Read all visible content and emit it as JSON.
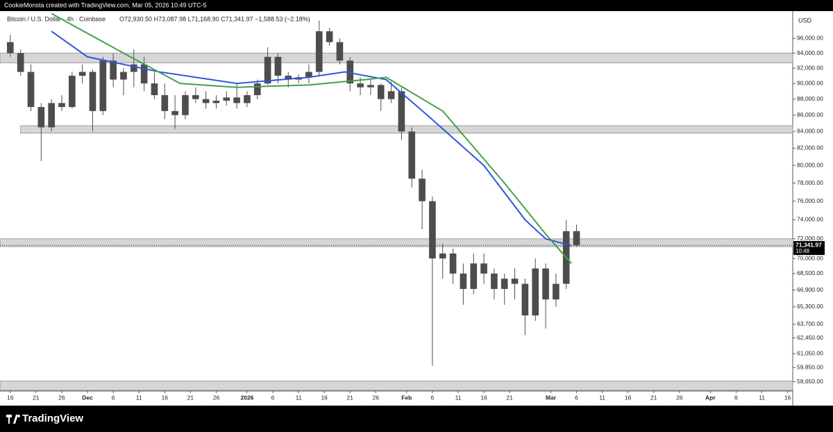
{
  "header": "CookieMonsta created with TradingView.com, Mar 05, 2026 10:49 UTC-5",
  "brand": "TradingView",
  "chart_data": {
    "type": "candlestick",
    "title": "Bitcoin / U.S. Dollar · 4h · Coinbase",
    "subtitle": "O72,930.50 H73,087.98 L71,168.90 C71,341.97 −1,588.53 (−2.18%)",
    "y_unit": "USD",
    "log_scale": true,
    "candle_color": "#4d4d4d",
    "x": [
      "2025-11-15",
      "2025-11-17",
      "2025-11-19",
      "2025-11-21",
      "2025-11-23",
      "2025-11-25",
      "2025-11-27",
      "2025-11-29",
      "2025-12-01",
      "2025-12-03",
      "2025-12-05",
      "2025-12-07",
      "2025-12-09",
      "2025-12-11",
      "2025-12-13",
      "2025-12-15",
      "2025-12-17",
      "2025-12-19",
      "2025-12-21",
      "2025-12-23",
      "2025-12-25",
      "2025-12-27",
      "2025-12-29",
      "2025-12-31",
      "2026-01-02",
      "2026-01-04",
      "2026-01-06",
      "2026-01-08",
      "2026-01-10",
      "2026-01-12",
      "2026-01-14",
      "2026-01-16",
      "2026-01-18",
      "2026-01-20",
      "2026-01-22",
      "2026-01-24",
      "2026-01-26",
      "2026-01-28",
      "2026-01-30",
      "2026-02-01",
      "2026-02-03",
      "2026-02-05",
      "2026-02-07",
      "2026-02-09",
      "2026-02-11",
      "2026-02-13",
      "2026-02-15",
      "2026-02-17",
      "2026-02-19",
      "2026-02-21",
      "2026-02-23",
      "2026-02-25",
      "2026-02-27",
      "2026-03-01",
      "2026-03-03",
      "2026-03-05"
    ],
    "open": [
      95500,
      94000,
      91500,
      87000,
      84500,
      87500,
      87000,
      91000,
      91500,
      86500,
      93000,
      90500,
      91500,
      92500,
      90000,
      88500,
      86500,
      86000,
      88500,
      88000,
      87500,
      87800,
      88200,
      87500,
      88500,
      90000,
      93500,
      91000,
      90500,
      90800,
      91500,
      97000,
      95500,
      93000,
      90000,
      89500,
      89800,
      88000,
      89000,
      84000,
      78500,
      76000,
      70000,
      70500,
      68500,
      67000,
      69500,
      68500,
      67000,
      68000,
      67500,
      64500,
      69000,
      66000,
      67500,
      72800
    ],
    "high": [
      96500,
      94500,
      92500,
      87500,
      88000,
      88500,
      91500,
      92500,
      91800,
      93500,
      94000,
      92000,
      94500,
      93500,
      91500,
      90000,
      88500,
      89000,
      89500,
      89000,
      88500,
      89000,
      90000,
      89000,
      90500,
      94800,
      94000,
      91500,
      91200,
      92500,
      98500,
      97500,
      96000,
      93500,
      90800,
      90500,
      90000,
      90200,
      89500,
      84500,
      79500,
      76500,
      71500,
      71000,
      69500,
      70500,
      70500,
      69000,
      68500,
      69000,
      68000,
      70000,
      69500,
      68500,
      74000,
      73500
    ],
    "low": [
      93500,
      91000,
      86500,
      80500,
      84000,
      86500,
      86800,
      90000,
      84000,
      86000,
      89500,
      88500,
      89500,
      89000,
      88000,
      85500,
      84300,
      85500,
      87500,
      86800,
      86800,
      87200,
      86800,
      87000,
      88000,
      89800,
      90000,
      89500,
      90000,
      90000,
      91000,
      95000,
      92500,
      89000,
      88500,
      88500,
      86500,
      87500,
      83000,
      77500,
      73000,
      60000,
      68000,
      67500,
      65500,
      66500,
      67500,
      66000,
      65500,
      66000,
      62700,
      64000,
      63300,
      65300,
      67000,
      71168.9
    ],
    "close": [
      94000,
      91500,
      87000,
      84500,
      87500,
      87000,
      91000,
      91500,
      86500,
      93000,
      90500,
      91500,
      92500,
      90000,
      88500,
      86500,
      86000,
      88500,
      88000,
      87500,
      87800,
      88200,
      87500,
      88500,
      90000,
      93500,
      91000,
      90500,
      90800,
      91500,
      97000,
      95500,
      93000,
      90000,
      89500,
      89800,
      88000,
      89000,
      84000,
      78500,
      76000,
      70000,
      70500,
      68500,
      67000,
      69500,
      68500,
      67000,
      68000,
      67500,
      64500,
      69000,
      66000,
      67500,
      72800,
      71341.97
    ],
    "price_label": "71,341.97",
    "countdown": "10:48",
    "series": [
      {
        "color": "#2f55e0",
        "x": [
          "2025-11-24",
          "2025-12-01",
          "2025-12-15",
          "2025-12-30",
          "2026-01-13",
          "2026-01-20",
          "2026-01-28",
          "2026-02-05",
          "2026-02-16",
          "2026-02-24",
          "2026-02-28",
          "2026-03-05"
        ],
        "values": [
          97000,
          93500,
          91500,
          90000,
          90800,
          91500,
          90500,
          86000,
          80000,
          74000,
          72000,
          71300
        ]
      },
      {
        "color": "#43a047",
        "x": [
          "2025-11-24",
          "2025-12-08",
          "2025-12-19",
          "2025-12-30",
          "2026-01-13",
          "2026-01-24",
          "2026-01-28",
          "2026-02-08",
          "2026-02-20",
          "2026-02-28",
          "2026-03-05"
        ],
        "values": [
          99500,
          94000,
          90000,
          89500,
          89800,
          90500,
          90800,
          86500,
          78000,
          72500,
          69500
        ]
      }
    ],
    "zones": [
      {
        "from": "2025-11-14",
        "low": 92700,
        "high": 94000
      },
      {
        "from": "2025-11-18",
        "low": 83800,
        "high": 84700
      },
      {
        "from": "2025-11-14",
        "low": 71200,
        "high": 72000
      },
      {
        "from": "2025-11-14",
        "low": 57925,
        "high": 58700
      }
    ],
    "xlim": [
      "2025-11-14",
      "2026-04-17"
    ],
    "ylim": [
      57925,
      99650
    ],
    "xticks": [
      {
        "value": "2025-11-16",
        "label": "16"
      },
      {
        "value": "2025-11-21",
        "label": "21"
      },
      {
        "value": "2025-11-26",
        "label": "26"
      },
      {
        "value": "2025-12-01",
        "label": "Dec"
      },
      {
        "value": "2025-12-06",
        "label": "6"
      },
      {
        "value": "2025-12-11",
        "label": "11"
      },
      {
        "value": "2025-12-16",
        "label": "16"
      },
      {
        "value": "2025-12-21",
        "label": "21"
      },
      {
        "value": "2025-12-26",
        "label": "26"
      },
      {
        "value": "2026-01-01",
        "label": "2026"
      },
      {
        "value": "2026-01-06",
        "label": "6"
      },
      {
        "value": "2026-01-11",
        "label": "11"
      },
      {
        "value": "2026-01-16",
        "label": "16"
      },
      {
        "value": "2026-01-21",
        "label": "21"
      },
      {
        "value": "2026-01-26",
        "label": "26"
      },
      {
        "value": "2026-02-01",
        "label": "Feb"
      },
      {
        "value": "2026-02-06",
        "label": "6"
      },
      {
        "value": "2026-02-11",
        "label": "11"
      },
      {
        "value": "2026-02-16",
        "label": "16"
      },
      {
        "value": "2026-02-21",
        "label": "21"
      },
      {
        "value": "2026-03-01",
        "label": "Mar"
      },
      {
        "value": "2026-03-06",
        "label": "6"
      },
      {
        "value": "2026-03-11",
        "label": "11"
      },
      {
        "value": "2026-03-16",
        "label": "16"
      },
      {
        "value": "2026-03-21",
        "label": "21"
      },
      {
        "value": "2026-03-26",
        "label": "26"
      },
      {
        "value": "2026-04-01",
        "label": "Apr"
      },
      {
        "value": "2026-04-06",
        "label": "6"
      },
      {
        "value": "2026-04-11",
        "label": "11"
      },
      {
        "value": "2026-04-16",
        "label": "16"
      }
    ],
    "yticks": [
      {
        "value": 96000,
        "label": "96,000.00"
      },
      {
        "value": 94000,
        "label": "94,000.00"
      },
      {
        "value": 92000,
        "label": "92,000.00"
      },
      {
        "value": 90000,
        "label": "90,000.00"
      },
      {
        "value": 88000,
        "label": "88,000.00"
      },
      {
        "value": 86000,
        "label": "86,000.00"
      },
      {
        "value": 84000,
        "label": "84,000.00"
      },
      {
        "value": 82000,
        "label": "82,000.00"
      },
      {
        "value": 80000,
        "label": "80,000.00"
      },
      {
        "value": 78000,
        "label": "78,000.00"
      },
      {
        "value": 76000,
        "label": "76,000.00"
      },
      {
        "value": 74000,
        "label": "74,000.00"
      },
      {
        "value": 72000,
        "label": "72,000.00"
      },
      {
        "value": 70000,
        "label": "70,000.00"
      },
      {
        "value": 68500,
        "label": "68,500.00"
      },
      {
        "value": 66900,
        "label": "66,900.00"
      },
      {
        "value": 65300,
        "label": "65,300.00"
      },
      {
        "value": 63700,
        "label": "63,700.00"
      },
      {
        "value": 62450,
        "label": "62,450.00"
      },
      {
        "value": 61050,
        "label": "61,050.00"
      },
      {
        "value": 59850,
        "label": "59,850.00"
      },
      {
        "value": 58650,
        "label": "58,650.00"
      }
    ]
  }
}
